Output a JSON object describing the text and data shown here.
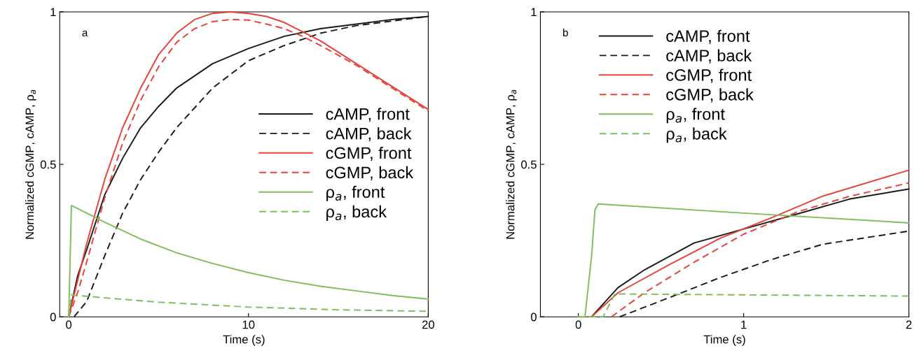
{
  "chart_data": [
    {
      "type": "line",
      "xlabel": "Time (s)",
      "ylabel": "Normalized cGMP, cAMP, ρ$_{a}$",
      "annotations": [
        "a"
      ],
      "xlim": [
        -0.5,
        20
      ],
      "ylim": [
        0,
        1
      ],
      "xticks": [
        0,
        10,
        20
      ],
      "yticks": [
        0,
        {
          "value": 0.5,
          "label": "0.5"
        },
        1
      ],
      "grid": false,
      "legend": "right",
      "marker": "none",
      "series": [
        {
          "name": "cAMP, front",
          "color": "#1a1a1a",
          "line_style": "solid",
          "x": [
            0,
            0.5,
            1,
            2,
            3,
            4,
            5,
            6,
            8,
            10,
            12,
            14,
            16,
            18,
            20
          ],
          "values": [
            0,
            0.135,
            0.22,
            0.4,
            0.52,
            0.62,
            0.69,
            0.75,
            0.83,
            0.88,
            0.92,
            0.945,
            0.96,
            0.975,
            0.985
          ]
        },
        {
          "name": "cAMP, back",
          "color": "#1a1a1a",
          "line_style": "dashed",
          "x": [
            0.3,
            1,
            2,
            3,
            4,
            5,
            6,
            8,
            10,
            12,
            14,
            16,
            18,
            20
          ],
          "values": [
            0,
            0.05,
            0.2,
            0.34,
            0.45,
            0.54,
            0.62,
            0.75,
            0.84,
            0.89,
            0.93,
            0.955,
            0.97,
            0.985
          ]
        },
        {
          "name": "cGMP, front",
          "color": "#e8413a",
          "line_style": "solid",
          "x": [
            0,
            0.5,
            1,
            2,
            3,
            4,
            5,
            6,
            7,
            8,
            9,
            10,
            11,
            12,
            13,
            14,
            16,
            18,
            20
          ],
          "values": [
            0,
            0.12,
            0.24,
            0.45,
            0.62,
            0.75,
            0.86,
            0.93,
            0.975,
            0.995,
            1.0,
            0.995,
            0.985,
            0.965,
            0.935,
            0.905,
            0.83,
            0.755,
            0.68
          ]
        },
        {
          "name": "cGMP, back",
          "color": "#e8413a",
          "line_style": "dashed",
          "x": [
            0,
            0.5,
            1,
            2,
            3,
            4,
            5,
            6,
            7,
            8,
            9,
            10,
            11,
            12,
            13,
            14,
            16,
            18,
            20
          ],
          "values": [
            0,
            0.08,
            0.18,
            0.39,
            0.57,
            0.71,
            0.82,
            0.9,
            0.945,
            0.968,
            0.975,
            0.973,
            0.96,
            0.945,
            0.92,
            0.89,
            0.825,
            0.75,
            0.675
          ]
        },
        {
          "name": "ρ$_{a}$, front",
          "color": "#7cbf5a",
          "line_style": "solid",
          "x": [
            0,
            0.15,
            1,
            2,
            4,
            6,
            8,
            10,
            12,
            14,
            16,
            18,
            20
          ],
          "values": [
            0,
            0.365,
            0.34,
            0.31,
            0.255,
            0.21,
            0.175,
            0.145,
            0.12,
            0.1,
            0.085,
            0.07,
            0.058
          ]
        },
        {
          "name": "ρ$_{a}$, back",
          "color": "#7cbf5a",
          "line_style": "dashed",
          "x": [
            0,
            0.15,
            2,
            5,
            10,
            15,
            20
          ],
          "values": [
            0,
            0.072,
            0.062,
            0.048,
            0.032,
            0.023,
            0.018
          ]
        }
      ]
    },
    {
      "type": "line",
      "xlabel": "Time (s)",
      "ylabel": "Normalized cGMP, cAMP, ρ$_{a}$",
      "annotations": [
        "b"
      ],
      "xlim": [
        -0.23,
        2
      ],
      "ylim": [
        0,
        1
      ],
      "xticks": [
        0,
        1,
        2
      ],
      "yticks": [
        0,
        {
          "value": 0.5,
          "label": "0.5"
        },
        1
      ],
      "grid": false,
      "legend": "top left",
      "marker": "none",
      "series": [
        {
          "name": "cAMP, front",
          "color": "#1a1a1a",
          "line_style": "solid",
          "x": [
            0.08,
            0.24,
            0.4,
            0.7,
            1.0,
            1.33,
            1.64,
            2
          ],
          "values": [
            0,
            0.096,
            0.154,
            0.242,
            0.288,
            0.338,
            0.386,
            0.419
          ]
        },
        {
          "name": "cAMP, back",
          "color": "#1a1a1a",
          "line_style": "dashed",
          "x": [
            0.25,
            0.55,
            0.86,
            1.17,
            1.48,
            2
          ],
          "values": [
            0,
            0.063,
            0.129,
            0.188,
            0.238,
            0.281
          ]
        },
        {
          "name": "cGMP, front",
          "color": "#e8413a",
          "line_style": "solid",
          "x": [
            0.08,
            0.24,
            0.55,
            0.86,
            1.17,
            1.48,
            2
          ],
          "values": [
            0,
            0.079,
            0.171,
            0.258,
            0.325,
            0.396,
            0.481
          ]
        },
        {
          "name": "cGMP, back",
          "color": "#e8413a",
          "line_style": "dashed",
          "x": [
            0.2,
            0.4,
            0.7,
            1.0,
            1.33,
            1.64,
            2
          ],
          "values": [
            0,
            0.079,
            0.179,
            0.271,
            0.345,
            0.395,
            0.439
          ]
        },
        {
          "name": "ρ$_{a}$, front",
          "color": "#7cbf5a",
          "line_style": "solid",
          "x": [
            0,
            0.04,
            0.08,
            0.1,
            0.12,
            1,
            2
          ],
          "values": [
            0,
            0,
            0.2,
            0.35,
            0.37,
            0.34,
            0.308
          ]
        },
        {
          "name": "ρ$_{a}$, back",
          "color": "#7cbf5a",
          "line_style": "dashed",
          "x": [
            0,
            0.15,
            0.22,
            2
          ],
          "values": [
            0,
            0,
            0.075,
            0.068
          ]
        }
      ]
    }
  ]
}
